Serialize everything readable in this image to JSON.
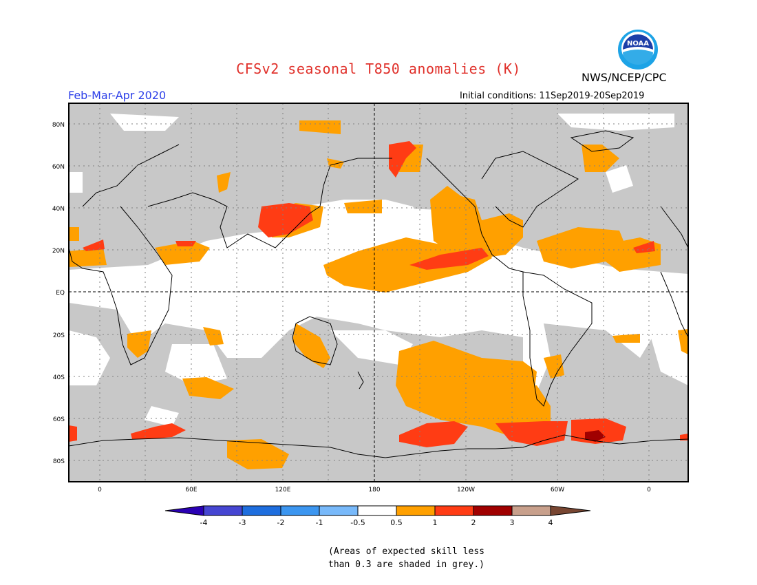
{
  "header": {
    "title": "CFSv2 seasonal T850 anomalies (K)",
    "agency": "NWS/NCEP/CPC",
    "logo_text": "NOAA",
    "period": "Feb-Mar-Apr 2020",
    "initial_conditions": "Initial conditions: 11Sep2019-20Sep2019"
  },
  "map": {
    "projection": "equirectangular, centered on 180",
    "lat_labels": [
      "80N",
      "60N",
      "40N",
      "20N",
      "EQ",
      "20S",
      "40S",
      "60S",
      "80S"
    ],
    "lon_labels": [
      "0",
      "60E",
      "120E",
      "180",
      "120W",
      "60W",
      "0"
    ],
    "colors": {
      "low_skill_grey": "#c8c8c8",
      "neutral": "#ffffff",
      "warm_05_1": "#ffa000",
      "warm_1_2": "#ff3c14",
      "warm_2_3": "#a00000"
    }
  },
  "colorbar": {
    "tick_labels": [
      "-4",
      "-3",
      "-2",
      "-1",
      "-0.5",
      "0.5",
      "1",
      "2",
      "3",
      "4"
    ],
    "colors": [
      "#2a00b4",
      "#4646d2",
      "#1e6ede",
      "#3c96f0",
      "#78b9fa",
      "#ffffff",
      "#ffa000",
      "#ff3c14",
      "#a00000",
      "#c8a08c",
      "#784632"
    ]
  },
  "footnote": {
    "line1": "(Areas of expected skill less",
    "line2": "than 0.3 are shaded in grey.)"
  }
}
